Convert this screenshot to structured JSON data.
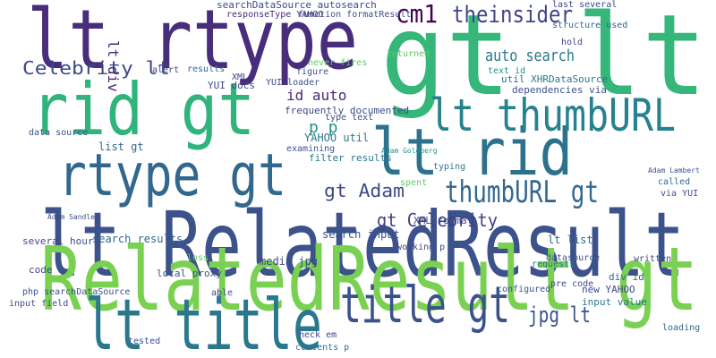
{
  "words": [
    {
      "text": "gt lt",
      "color": "#35b779"
    },
    {
      "text": "lt rtype",
      "color": "#472d7b"
    },
    {
      "text": "rid gt",
      "color": "#2fb47c"
    },
    {
      "text": "lt rid",
      "color": "#2c728e"
    },
    {
      "text": "rtype gt",
      "color": "#31688e"
    },
    {
      "text": "lt RelatedResult",
      "color": "#3b528b"
    },
    {
      "text": "RelatedResult gt",
      "color": "#7ad151"
    },
    {
      "text": "lt title",
      "color": "#2a788e"
    },
    {
      "text": "title gt",
      "color": "#3b528b"
    },
    {
      "text": "lt thumbURL",
      "color": "#26828e"
    },
    {
      "text": "thumbURL gt",
      "color": "#31688e"
    },
    {
      "text": "Celebrity lt",
      "color": "#3e4a89"
    },
    {
      "text": "cm1",
      "color": "#440154"
    },
    {
      "text": "theinsider",
      "color": "#414487"
    },
    {
      "text": "auto search",
      "color": "#2a788e"
    },
    {
      "text": "gt Adam",
      "color": "#3e4a89"
    },
    {
      "text": "gt Celebrity",
      "color": "#433e85"
    },
    {
      "text": "jpg lt",
      "color": "#3b528b"
    },
    {
      "text": "lt div",
      "color": "#482878"
    },
    {
      "text": "id auto",
      "color": "#482878"
    },
    {
      "text": "frequently documented",
      "color": "#3e4a89"
    },
    {
      "text": "p p",
      "color": "#21918c"
    },
    {
      "text": "YAHOO util",
      "color": "#2a788e"
    },
    {
      "text": "examining",
      "color": "#3b528b"
    },
    {
      "text": "filter results",
      "color": "#2a788e"
    },
    {
      "text": "search input",
      "color": "#3b528b"
    },
    {
      "text": "search results",
      "color": "#31688e"
    },
    {
      "text": "several hours",
      "color": "#3e4a89"
    },
    {
      "text": "list gt",
      "color": "#31688e"
    },
    {
      "text": "media jpg",
      "color": "#3e4a89"
    },
    {
      "text": "local proxy",
      "color": "#3b528b"
    },
    {
      "text": "new YAHOO",
      "color": "#3e4a89"
    },
    {
      "text": "input value",
      "color": "#2a788e"
    },
    {
      "text": "div id",
      "color": "#31688e"
    },
    {
      "text": "XML format",
      "color": "#3e4a89"
    },
    {
      "text": "searchDataSource autosearch",
      "color": "#3e4a89"
    },
    {
      "text": "responseType YAHOO",
      "color": "#472d7b"
    },
    {
      "text": "function formatResult",
      "color": "#3b528b"
    },
    {
      "text": "last several",
      "color": "#3e4a89"
    },
    {
      "text": "structure used",
      "color": "#31688e"
    },
    {
      "text": "dependencies via",
      "color": "#3b528b"
    },
    {
      "text": "util XHRDataSource",
      "color": "#2a788e"
    },
    {
      "text": "text id",
      "color": "#21918c"
    },
    {
      "text": "hold",
      "color": "#3e4a89"
    },
    {
      "text": "YUI loader",
      "color": "#3b528b"
    },
    {
      "text": "YUI docs",
      "color": "#3e4a89"
    },
    {
      "text": "XML",
      "color": "#414487"
    },
    {
      "text": "figure",
      "color": "#3b528b"
    },
    {
      "text": "never fires",
      "color": "#5ec962"
    },
    {
      "text": "type text",
      "color": "#3b528b"
    },
    {
      "text": "returned",
      "color": "#5ec962"
    },
    {
      "text": "alert",
      "color": "#3e4a89"
    },
    {
      "text": "results",
      "color": "#31688e"
    },
    {
      "text": "data source",
      "color": "#3b528b"
    },
    {
      "text": "code",
      "color": "#3e4a89"
    },
    {
      "text": "input field",
      "color": "#3e4a89"
    },
    {
      "text": "php searchDataSource",
      "color": "#3b528b"
    },
    {
      "text": "working p",
      "color": "#3e4a89"
    },
    {
      "text": "datasource",
      "color": "#3b528b"
    },
    {
      "text": "lt list",
      "color": "#31688e"
    },
    {
      "text": "pre code",
      "color": "#3e4a89"
    },
    {
      "text": "requests",
      "color": "#2a788e"
    },
    {
      "text": "configured",
      "color": "#3b528b"
    },
    {
      "text": "written",
      "color": "#3e4a89"
    },
    {
      "text": "via YUI",
      "color": "#3b528b"
    },
    {
      "text": "called",
      "color": "#31688e"
    },
    {
      "text": "spent",
      "color": "#5ec962"
    },
    {
      "text": "loading",
      "color": "#31688e"
    },
    {
      "text": "able",
      "color": "#3e4a89"
    },
    {
      "text": "tested",
      "color": "#3b528b"
    },
    {
      "text": "heck em",
      "color": "#3e4a89"
    },
    {
      "text": "contents p",
      "color": "#2a788e"
    },
    {
      "text": "typing",
      "color": "#2a788e"
    },
    {
      "text": "Adam Lambert",
      "color": "#3b528b"
    },
    {
      "text": "Adam Sandler",
      "color": "#3e4a89"
    },
    {
      "text": "Adam Goldberg",
      "color": "#21918c"
    },
    {
      "text": "loss",
      "color": "#5ec962"
    }
  ]
}
